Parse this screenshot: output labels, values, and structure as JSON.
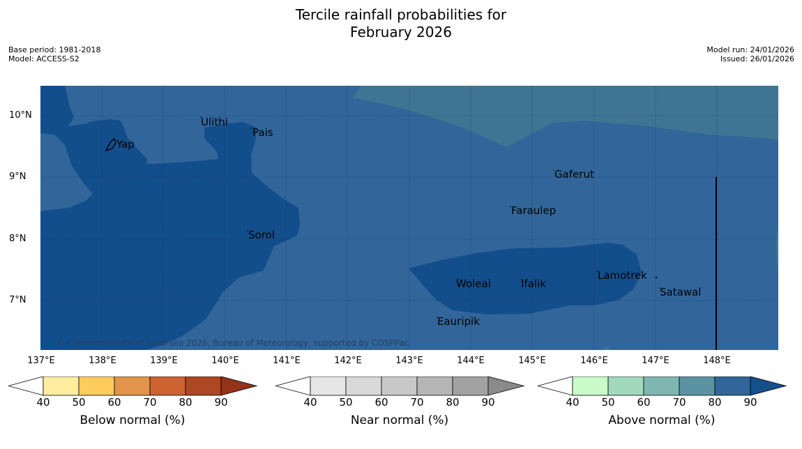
{
  "title": {
    "line1": "Tercile rainfall probabilities for",
    "line2": "February 2026"
  },
  "meta": {
    "base_period": "Base period: 1981-2018",
    "model": "Model: ACCESS-S2",
    "model_run": "Model run: 24/01/2026",
    "issued": "Issued: 26/01/2026"
  },
  "axes": {
    "lat_labels": [
      "10°N",
      "9°N",
      "8°N",
      "7°N"
    ],
    "lon_labels": [
      "137°E",
      "138°E",
      "139°E",
      "140°E",
      "141°E",
      "142°E",
      "143°E",
      "144°E",
      "145°E",
      "146°E",
      "147°E",
      "148°E"
    ]
  },
  "places": [
    "Yap",
    "Ulithi",
    "Pais",
    "Gaferut",
    "Faraulep",
    "Sorol",
    "Woleai",
    "Ifalik",
    "Lamotrek",
    "Satawal",
    "Eauripik"
  ],
  "copyright": "© Commonwealth of Australia 2026, Bureau of Meteorology, supported by COSPPac",
  "colorbars": [
    {
      "title": "Below normal (%)",
      "ticks": [
        "40",
        "50",
        "60",
        "70",
        "80",
        "90"
      ],
      "colors": [
        "#ffffff",
        "#ffeda0",
        "#fecc5c",
        "#e1944a",
        "#cd6233",
        "#ad4724",
        "#94321a"
      ]
    },
    {
      "title": "Near normal (%)",
      "ticks": [
        "40",
        "50",
        "60",
        "70",
        "80",
        "90"
      ],
      "colors": [
        "#ffffff",
        "#e6e6e6",
        "#d9d9d9",
        "#c8c8c8",
        "#b5b5b5",
        "#a2a2a2",
        "#8a8a8a"
      ]
    },
    {
      "title": "Above normal (%)",
      "ticks": [
        "40",
        "50",
        "60",
        "70",
        "80",
        "90"
      ],
      "colors": [
        "#ffffff",
        "#c9fcc9",
        "#a2d9bd",
        "#7fb7b0",
        "#5b93a0",
        "#32669a",
        "#154f8c"
      ]
    }
  ],
  "map_colors": {
    "level_70_80": "#3f7593",
    "level_80_90": "#32669a",
    "level_90_plus": "#134e8c"
  }
}
